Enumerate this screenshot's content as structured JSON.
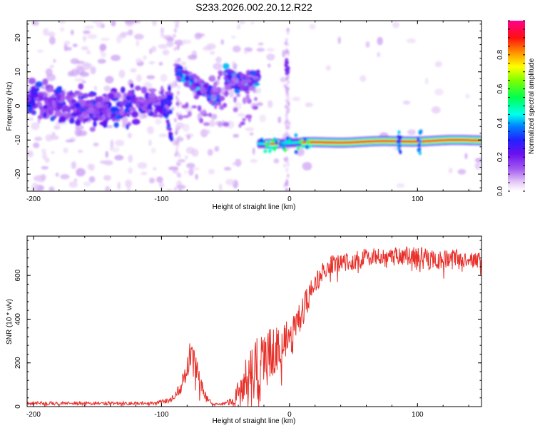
{
  "figure_title": "S233.2026.002.20.12.R22",
  "colors": {
    "snr_line": "#e8302a",
    "axis": "#000000",
    "background": "#ffffff"
  },
  "chart_data": [
    {
      "type": "heatmap",
      "title": "S233.2026.002.20.12.R22",
      "xlabel": "Height of straight line (km)",
      "ylabel": "Frequency (Hz)",
      "xlim": [
        -205,
        150
      ],
      "ylim": [
        -25,
        25
      ],
      "x_ticks": [
        -200,
        -100,
        0,
        100
      ],
      "x_tick_labels": [
        "-200",
        "-100",
        "0",
        "100"
      ],
      "y_ticks": [
        -20,
        -10,
        0,
        10,
        20
      ],
      "y_tick_labels": [
        "-20",
        "-10",
        "0",
        "10",
        "20"
      ],
      "colorbar": {
        "label": "Normalized spectral amplitude",
        "range": [
          0,
          1
        ],
        "ticks": [
          0.0,
          0.2,
          0.4,
          0.6,
          0.8
        ],
        "tick_labels": [
          "0.0",
          "0.2",
          "0.4",
          "0.6",
          "0.8"
        ],
        "colormap": "rainbow (white-violet-blue-cyan-green-yellow-orange-red-magenta)"
      },
      "features": [
        {
          "name": "free-space wander",
          "x_range": [
            -205,
            -92
          ],
          "freq_center": 0,
          "freq_spread": 5,
          "peak_amplitude": 0.3
        },
        {
          "name": "upper branch",
          "x_range": [
            -88,
            -55
          ],
          "freq_start": 10,
          "freq_end": 2,
          "peak_amplitude": 0.4
        },
        {
          "name": "upper branch 2",
          "x_range": [
            -50,
            -25
          ],
          "freq_start": 10,
          "freq_end": 6,
          "peak_amplitude": 0.4
        },
        {
          "name": "ocean-reflection line",
          "x_range": [
            -25,
            150
          ],
          "freq_start": -11,
          "freq_end": -10,
          "peak_amplitude": 0.95
        }
      ]
    },
    {
      "type": "line",
      "xlabel": "Height of straight line (km)",
      "ylabel": "SNR (10 * v/v)",
      "xlim": [
        -205,
        150
      ],
      "ylim": [
        0,
        780
      ],
      "x_ticks": [
        -200,
        -100,
        0,
        100
      ],
      "x_tick_labels": [
        "-200",
        "-100",
        "0",
        "100"
      ],
      "y_ticks": [
        0,
        200,
        400,
        600
      ],
      "y_tick_labels": [
        "0",
        "200",
        "400",
        "600"
      ],
      "series": [
        {
          "name": "SNR",
          "x": [
            -205,
            -150,
            -110,
            -100,
            -95,
            -90,
            -85,
            -80,
            -77,
            -74,
            -70,
            -65,
            -60,
            -55,
            -50,
            -45,
            -40,
            -35,
            -30,
            -25,
            -20,
            -15,
            -10,
            -5,
            0,
            5,
            10,
            15,
            20,
            25,
            30,
            40,
            50,
            60,
            70,
            80,
            90,
            100,
            110,
            120,
            130,
            140,
            150
          ],
          "mean": [
            15,
            15,
            15,
            20,
            28,
            45,
            85,
            170,
            230,
            200,
            110,
            40,
            12,
            12,
            15,
            25,
            60,
            100,
            140,
            170,
            200,
            240,
            270,
            290,
            310,
            350,
            420,
            500,
            560,
            610,
            640,
            660,
            670,
            680,
            680,
            680,
            685,
            680,
            675,
            670,
            680,
            670,
            670
          ],
          "jitter": [
            8,
            8,
            8,
            10,
            12,
            15,
            30,
            60,
            90,
            70,
            40,
            15,
            5,
            5,
            8,
            20,
            60,
            120,
            140,
            160,
            150,
            130,
            120,
            110,
            100,
            90,
            80,
            60,
            50,
            45,
            45,
            45,
            45,
            45,
            45,
            45,
            50,
            55,
            50,
            45,
            40,
            35,
            35
          ]
        }
      ]
    }
  ]
}
